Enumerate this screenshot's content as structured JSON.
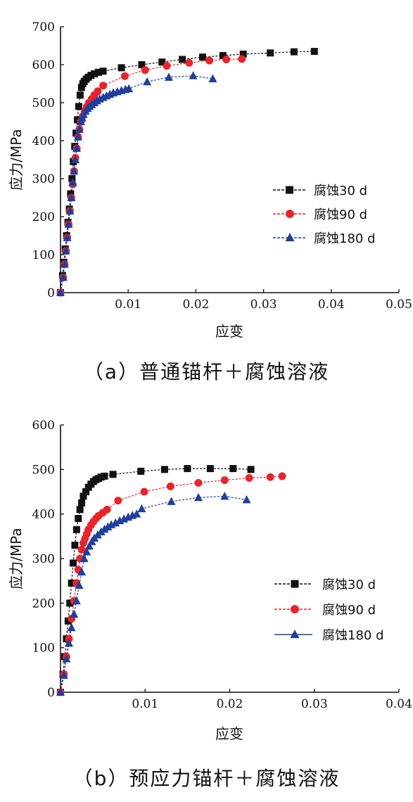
{
  "chart_data": [
    {
      "type": "line",
      "caption": "（a）普通锚杆＋腐蚀溶液",
      "xlabel": "应变",
      "ylabel": "应力/MPa",
      "xlim": [
        0,
        0.05
      ],
      "ylim": [
        0,
        700
      ],
      "xticks": [
        0.01,
        0.02,
        0.03,
        0.04,
        0.05
      ],
      "xtick_labels": [
        "0.01",
        "0.02",
        "0.03",
        "0.04",
        "0.05"
      ],
      "yticks": [
        0,
        100,
        200,
        300,
        400,
        500,
        600,
        700
      ],
      "ytick_labels": [
        "0",
        "100",
        "200",
        "300",
        "400",
        "500",
        "600",
        "700"
      ],
      "legend_position": "right",
      "series": [
        {
          "name": "腐蚀30 d",
          "color": "#111111",
          "marker": "square",
          "x": [
            0,
            0.0003,
            0.0005,
            0.0007,
            0.0009,
            0.0011,
            0.0013,
            0.0015,
            0.0017,
            0.0019,
            0.0021,
            0.0023,
            0.0025,
            0.0027,
            0.0029,
            0.0031,
            0.0033,
            0.0035,
            0.0038,
            0.0041,
            0.0045,
            0.005,
            0.0056,
            0.0063,
            0.009,
            0.012,
            0.015,
            0.018,
            0.021,
            0.024,
            0.027,
            0.031,
            0.0345,
            0.0375
          ],
          "y": [
            0,
            45,
            80,
            115,
            150,
            185,
            220,
            260,
            300,
            345,
            385,
            420,
            455,
            490,
            520,
            540,
            550,
            556,
            562,
            567,
            572,
            576,
            580,
            583,
            592,
            600,
            607,
            614,
            620,
            624,
            628,
            631,
            634,
            635
          ]
        },
        {
          "name": "腐蚀90 d",
          "color": "#e8242a",
          "marker": "circle",
          "x": [
            0,
            0.0004,
            0.0006,
            0.0008,
            0.001,
            0.0012,
            0.0014,
            0.0016,
            0.0018,
            0.002,
            0.0022,
            0.0024,
            0.0026,
            0.0028,
            0.003,
            0.0033,
            0.0036,
            0.0039,
            0.0042,
            0.0046,
            0.005,
            0.0055,
            0.0063,
            0.0095,
            0.0125,
            0.0157,
            0.019,
            0.022,
            0.0245,
            0.0268
          ],
          "y": [
            0,
            40,
            75,
            110,
            145,
            180,
            215,
            250,
            285,
            320,
            355,
            380,
            410,
            430,
            450,
            465,
            478,
            490,
            500,
            510,
            520,
            530,
            545,
            570,
            586,
            597,
            605,
            611,
            614,
            615
          ]
        },
        {
          "name": "腐蚀180 d",
          "color": "#1f3f9a",
          "marker": "triangle",
          "x": [
            0,
            0.0004,
            0.0006,
            0.0008,
            0.001,
            0.0012,
            0.0014,
            0.0016,
            0.0018,
            0.002,
            0.0022,
            0.0024,
            0.0026,
            0.0028,
            0.003,
            0.0032,
            0.0034,
            0.0037,
            0.004,
            0.0043,
            0.0046,
            0.005,
            0.0054,
            0.0058,
            0.0063,
            0.0068,
            0.0073,
            0.0078,
            0.0084,
            0.009,
            0.0096,
            0.0101,
            0.0128,
            0.016,
            0.0196,
            0.0225
          ],
          "y": [
            0,
            40,
            75,
            110,
            145,
            180,
            215,
            250,
            290,
            320,
            350,
            380,
            410,
            430,
            450,
            460,
            470,
            478,
            485,
            490,
            495,
            500,
            505,
            510,
            514,
            518,
            522,
            526,
            529,
            532,
            535,
            537,
            555,
            567,
            571,
            563
          ]
        }
      ]
    },
    {
      "type": "line",
      "caption": "（b）预应力锚杆＋腐蚀溶液",
      "xlabel": "应变",
      "ylabel": "应力/MPa",
      "xlim": [
        0,
        0.04
      ],
      "ylim": [
        0,
        600
      ],
      "xticks": [
        0.01,
        0.02,
        0.03,
        0.04
      ],
      "xtick_labels": [
        "0.01",
        "0.02",
        "0.03",
        "0.04"
      ],
      "yticks": [
        0,
        100,
        200,
        300,
        400,
        500,
        600
      ],
      "ytick_labels": [
        "0",
        "100",
        "200",
        "300",
        "400",
        "500",
        "600"
      ],
      "legend_position": "right",
      "series": [
        {
          "name": "腐蚀30 d",
          "color": "#111111",
          "marker": "square",
          "x": [
            0,
            0.0003,
            0.0005,
            0.0007,
            0.0009,
            0.0011,
            0.0013,
            0.0015,
            0.0017,
            0.0019,
            0.0021,
            0.0023,
            0.0025,
            0.0027,
            0.003,
            0.0033,
            0.0036,
            0.0039,
            0.0042,
            0.0045,
            0.0048,
            0.0052,
            0.0062,
            0.0095,
            0.0123,
            0.015,
            0.0177,
            0.0204,
            0.0225
          ],
          "y": [
            0,
            40,
            80,
            120,
            160,
            200,
            245,
            290,
            330,
            365,
            390,
            410,
            425,
            440,
            450,
            460,
            467,
            473,
            477,
            480,
            483,
            485,
            489,
            496,
            500,
            502,
            502,
            502,
            500
          ]
        },
        {
          "name": "腐蚀90 d",
          "color": "#e8242a",
          "marker": "circle",
          "x": [
            0,
            0.0004,
            0.0007,
            0.001,
            0.0013,
            0.0016,
            0.0019,
            0.0021,
            0.0023,
            0.0025,
            0.0027,
            0.0029,
            0.0031,
            0.0033,
            0.0036,
            0.0039,
            0.0042,
            0.0045,
            0.005,
            0.0055,
            0.0068,
            0.0099,
            0.013,
            0.0163,
            0.0194,
            0.0223,
            0.0248,
            0.0262
          ],
          "y": [
            0,
            40,
            80,
            120,
            165,
            205,
            245,
            275,
            300,
            320,
            335,
            345,
            355,
            365,
            375,
            383,
            390,
            396,
            403,
            410,
            430,
            450,
            462,
            470,
            476,
            481,
            483,
            485
          ]
        },
        {
          "name": "腐蚀180 d",
          "color": "#1f3f9a",
          "marker": "triangle",
          "x": [
            0,
            0.0004,
            0.0007,
            0.001,
            0.0013,
            0.0016,
            0.0019,
            0.0022,
            0.0025,
            0.0028,
            0.0031,
            0.0034,
            0.0037,
            0.004,
            0.0044,
            0.0048,
            0.0052,
            0.0056,
            0.006,
            0.0065,
            0.007,
            0.0075,
            0.008,
            0.0085,
            0.009,
            0.0096,
            0.0131,
            0.0163,
            0.0194,
            0.022
          ],
          "y": [
            0,
            38,
            75,
            110,
            145,
            175,
            205,
            240,
            270,
            300,
            315,
            328,
            338,
            346,
            353,
            360,
            366,
            371,
            376,
            380,
            385,
            389,
            393,
            397,
            400,
            412,
            428,
            437,
            440,
            432
          ]
        }
      ]
    }
  ]
}
